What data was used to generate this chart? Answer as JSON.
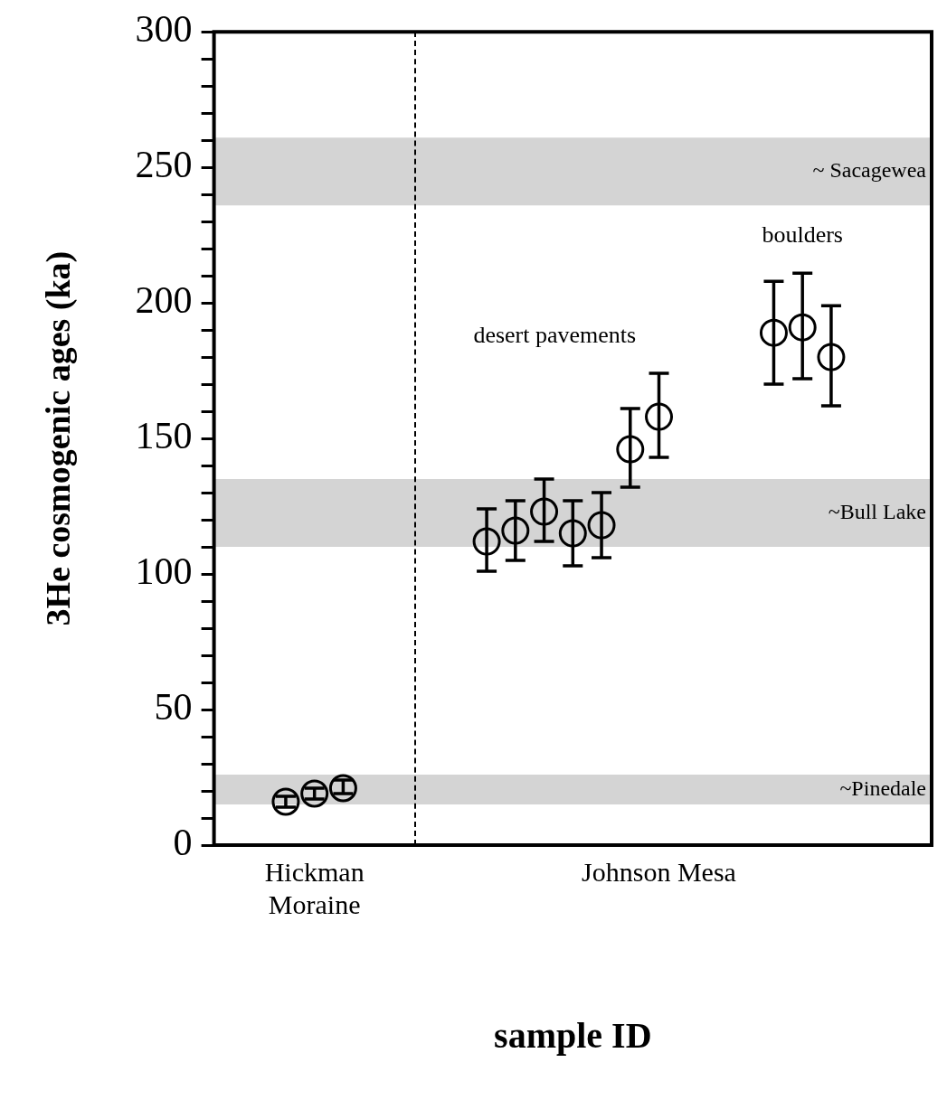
{
  "chart_data": {
    "type": "scatter",
    "xlabel": "sample ID",
    "ylabel": "3He cosmogenic ages (ka)",
    "categories": [
      null,
      null,
      null,
      "Hickman Moraine",
      null,
      null,
      null,
      null,
      null,
      null,
      null,
      null,
      null,
      null,
      null,
      "Johnson Mesa",
      null,
      null,
      null,
      null,
      null,
      null,
      null,
      null,
      null
    ],
    "series": [
      {
        "color": "#000000",
        "values": [
          null,
          null,
          16,
          19,
          21,
          null,
          null,
          null,
          null,
          112,
          116,
          123,
          115,
          118,
          146,
          158,
          null,
          null,
          null,
          189,
          191,
          180,
          null,
          null,
          null
        ],
        "errors": [
          null,
          null,
          [
            14,
            18
          ],
          [
            17,
            21
          ],
          [
            19,
            24
          ],
          null,
          null,
          null,
          null,
          [
            101,
            124
          ],
          [
            105,
            127
          ],
          [
            112,
            135
          ],
          [
            103,
            127
          ],
          [
            106,
            130
          ],
          [
            132,
            161
          ],
          [
            143,
            174
          ],
          null,
          null,
          null,
          [
            170,
            208
          ],
          [
            172,
            211
          ],
          [
            162,
            199
          ],
          null,
          null,
          null
        ]
      }
    ],
    "ylim": [
      0,
      300
    ],
    "yticks": [
      0,
      {
        "value": 10,
        "label": null
      },
      {
        "value": 20,
        "label": null
      },
      {
        "value": 30,
        "label": null
      },
      {
        "value": 40,
        "label": null
      },
      50,
      {
        "value": 60,
        "label": null
      },
      {
        "value": 70,
        "label": null
      },
      {
        "value": 80,
        "label": null
      },
      {
        "value": 90,
        "label": null
      },
      100,
      {
        "value": 110,
        "label": null
      },
      {
        "value": 120,
        "label": null
      },
      {
        "value": 130,
        "label": null
      },
      {
        "value": 140,
        "label": null
      },
      150,
      {
        "value": 160,
        "label": null
      },
      {
        "value": 170,
        "label": null
      },
      {
        "value": 180,
        "label": null
      },
      {
        "value": 190,
        "label": null
      },
      200,
      {
        "value": 210,
        "label": null
      },
      {
        "value": 220,
        "label": null
      },
      {
        "value": 230,
        "label": null
      },
      {
        "value": 240,
        "label": null
      },
      250,
      {
        "value": 260,
        "label": null
      },
      {
        "value": 270,
        "label": null
      },
      {
        "value": 280,
        "label": null
      },
      {
        "value": 290,
        "label": null
      },
      300
    ],
    "bands": [
      {
        "axis": "y",
        "from": 15,
        "to": 26,
        "label": "~Pinedale",
        "color": "#d4d4d4"
      },
      {
        "axis": "y",
        "from": 110,
        "to": 135,
        "label": "~Bull Lake",
        "color": "#d4d4d4"
      },
      {
        "axis": "y",
        "from": 236,
        "to": 261,
        "label": "~ Sacagewea",
        "color": "#d4d4d4"
      }
    ],
    "annotations": [
      "desert pavements",
      "boulders"
    ],
    "grid": false,
    "legend": false,
    "marker": "circle"
  }
}
